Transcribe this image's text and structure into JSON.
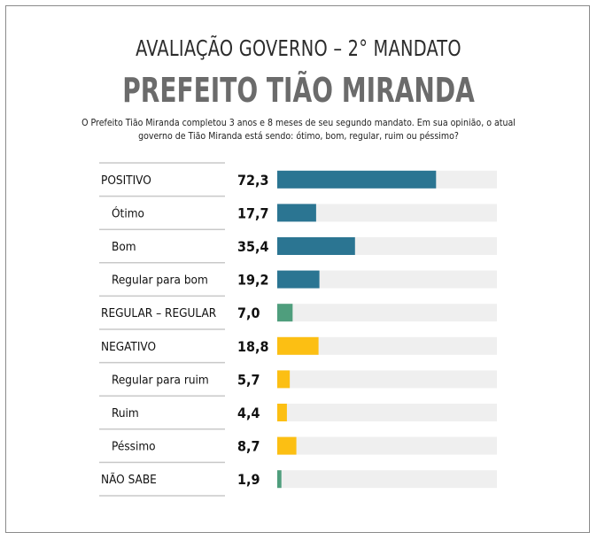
{
  "header": {
    "title": "AVALIAÇÃO GOVERNO – 2° MANDATO",
    "subtitle": "PREFEITO TIÃO MIRANDA",
    "question_line1": "O Prefeito Tião Miranda completou 3 anos e 8 meses de seu segundo mandato. Em sua opinião, o atual",
    "question_line2": "governo de Tião Miranda está sendo: ótimo, bom, regular, ruim ou péssimo?"
  },
  "colors": {
    "positive": "#2b7592",
    "regular": "#4f9e7d",
    "negative": "#fcbf13",
    "unknown": "#4f9e7d",
    "track": "#efefef"
  },
  "chart_data": {
    "type": "bar",
    "orientation": "horizontal",
    "xlim": [
      0,
      100
    ],
    "categories": [
      "POSITIVO",
      "Ótimo",
      "Bom",
      "Regular para bom",
      "REGULAR – REGULAR",
      "NEGATIVO",
      "Regular para ruim",
      "Ruim",
      "Péssimo",
      "NÃO SABE"
    ],
    "display_values": [
      "72,3",
      "17,7",
      "35,4",
      "19,2",
      "7,0",
      "18,8",
      "5,7",
      "4,4",
      "8,7",
      "1,9"
    ],
    "values": [
      72.3,
      17.7,
      35.4,
      19.2,
      7.0,
      18.8,
      5.7,
      4.4,
      8.7,
      1.9
    ],
    "groups": [
      "positive",
      "positive",
      "positive",
      "positive",
      "regular",
      "negative",
      "negative",
      "negative",
      "negative",
      "unknown"
    ],
    "indented": [
      false,
      true,
      true,
      true,
      false,
      false,
      true,
      true,
      true,
      false
    ]
  }
}
